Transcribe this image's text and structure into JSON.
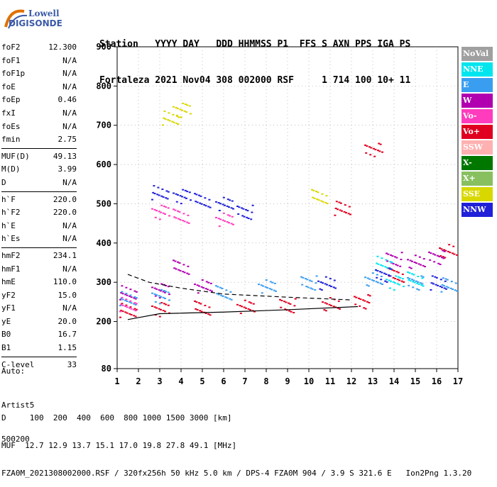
{
  "logo": {
    "line1": "Lowell",
    "line2": "DIGISONDE"
  },
  "header": {
    "line1": "Station   YYYY DAY   DDD HHMMSS P1  FFS S AXN PPS IGA PS",
    "line2": "Fortaleza 2021 Nov04 308 002000 RSF     1 714 100 10+ 11"
  },
  "params": {
    "group1": [
      {
        "name": "foF2",
        "value": "12.300"
      },
      {
        "name": "foF1",
        "value": "N/A"
      },
      {
        "name": "foF1p",
        "value": "N/A"
      },
      {
        "name": "foE",
        "value": "N/A"
      },
      {
        "name": "foEp",
        "value": "0.46"
      },
      {
        "name": "fxI",
        "value": "N/A"
      },
      {
        "name": "foEs",
        "value": "N/A"
      },
      {
        "name": "fmin",
        "value": "2.75"
      }
    ],
    "group2": [
      {
        "name": "MUF(D)",
        "value": "49.13"
      },
      {
        "name": "M(D)",
        "value": "3.99"
      },
      {
        "name": "D",
        "value": "N/A"
      }
    ],
    "group3": [
      {
        "name": "h`F",
        "value": "220.0"
      },
      {
        "name": "h`F2",
        "value": "220.0"
      },
      {
        "name": "h`E",
        "value": "N/A"
      },
      {
        "name": "h`Es",
        "value": "N/A"
      }
    ],
    "group4": [
      {
        "name": "hmF2",
        "value": "234.1"
      },
      {
        "name": "hmF1",
        "value": "N/A"
      },
      {
        "name": "hmE",
        "value": "110.0"
      },
      {
        "name": "yF2",
        "value": "15.0"
      },
      {
        "name": "yF1",
        "value": "N/A"
      },
      {
        "name": "yE",
        "value": "20.0"
      },
      {
        "name": "B0",
        "value": "16.7"
      },
      {
        "name": "B1",
        "value": "1.15"
      }
    ],
    "group5": [
      {
        "name": "C-level",
        "value": "33"
      }
    ]
  },
  "extra": {
    "line1": "Auto:",
    "line2": "Artist5",
    "line3": "500200"
  },
  "footer": {
    "line1": "D     100  200  400  600  800 1000 1500 3000 [km]",
    "line2": "MUF  12.7 12.9 13.7 15.1 17.0 19.8 27.8 49.1 [MHz]",
    "line3": "FZA0M_2021308002000.RSF / 320fx256h 50 kHz 5.0 km / DPS-4 FZA0M 904 / 3.9 S 321.6 E   Ion2Png 1.3.20"
  },
  "legend": [
    {
      "label": "NoVal",
      "color": "#a0a0a0"
    },
    {
      "label": "NNE",
      "color": "#00e5ee"
    },
    {
      "label": "E",
      "color": "#3a9ef0"
    },
    {
      "label": "W",
      "color": "#b000b0"
    },
    {
      "label": "Vo-",
      "color": "#ff3cbe"
    },
    {
      "label": "Vo+",
      "color": "#e00020"
    },
    {
      "label": "SSW",
      "color": "#ffb0b0"
    },
    {
      "label": "X-",
      "color": "#007800"
    },
    {
      "label": "X+",
      "color": "#88c060"
    },
    {
      "label": "SSE",
      "color": "#d8d800"
    },
    {
      "label": "NNW",
      "color": "#2020d8"
    }
  ],
  "chart_data": {
    "type": "scatter",
    "xlim": [
      1,
      17
    ],
    "ylim": [
      80,
      900
    ],
    "x_ticks": [
      1,
      2,
      3,
      4,
      5,
      6,
      7,
      8,
      9,
      10,
      11,
      12,
      13,
      14,
      15,
      16,
      17
    ],
    "y_ticks": [
      80,
      200,
      300,
      400,
      500,
      600,
      700,
      800,
      900
    ],
    "series": [
      {
        "name": "Vo+",
        "color": "#e00020",
        "points": [
          [
            1.5,
            230
          ],
          [
            3,
            232
          ],
          [
            5,
            236
          ],
          [
            7,
            238
          ],
          [
            9,
            242
          ],
          [
            11,
            247
          ],
          [
            12.5,
            252
          ],
          [
            11.5,
            490
          ],
          [
            13,
            640
          ],
          [
            14,
            320
          ],
          [
            16.5,
            380
          ]
        ]
      },
      {
        "name": "W",
        "color": "#b000b0",
        "points": [
          [
            1.5,
            275
          ],
          [
            3,
            280
          ],
          [
            4,
            340
          ],
          [
            5,
            290
          ],
          [
            14,
            360
          ],
          [
            15,
            355
          ],
          [
            16,
            365
          ]
        ]
      },
      {
        "name": "E",
        "color": "#3a9ef0",
        "points": [
          [
            1.5,
            260
          ],
          [
            3,
            265
          ],
          [
            6,
            275
          ],
          [
            8,
            290
          ],
          [
            10,
            300
          ],
          [
            13,
            310
          ],
          [
            15,
            300
          ],
          [
            16.5,
            295
          ]
        ]
      },
      {
        "name": "NNE",
        "color": "#00e5ee",
        "points": [
          [
            13.5,
            350
          ],
          [
            14,
            300
          ],
          [
            15,
            310
          ]
        ]
      },
      {
        "name": "Vo-",
        "color": "#ff3cbe",
        "points": [
          [
            1.5,
            245
          ],
          [
            3,
            480
          ],
          [
            4,
            470
          ],
          [
            6,
            460
          ]
        ]
      },
      {
        "name": "NNW",
        "color": "#2020d8",
        "points": [
          [
            3,
            530
          ],
          [
            4,
            520
          ],
          [
            5,
            510
          ],
          [
            6,
            500
          ],
          [
            7,
            480
          ],
          [
            10.8,
            300
          ],
          [
            13.5,
            320
          ],
          [
            16,
            300
          ]
        ]
      },
      {
        "name": "SSE",
        "color": "#d8d800",
        "points": [
          [
            3.5,
            720
          ],
          [
            4,
            740
          ],
          [
            10.5,
            520
          ]
        ]
      }
    ],
    "fitted_profile": [
      [
        1.5,
        205
      ],
      [
        3,
        220
      ],
      [
        6,
        224
      ],
      [
        9,
        230
      ],
      [
        12.3,
        238
      ]
    ],
    "extrapolated_profile": [
      [
        1.5,
        320
      ],
      [
        2.5,
        300
      ],
      [
        4,
        285
      ],
      [
        6,
        270
      ],
      [
        9,
        262
      ],
      [
        12,
        255
      ]
    ]
  }
}
